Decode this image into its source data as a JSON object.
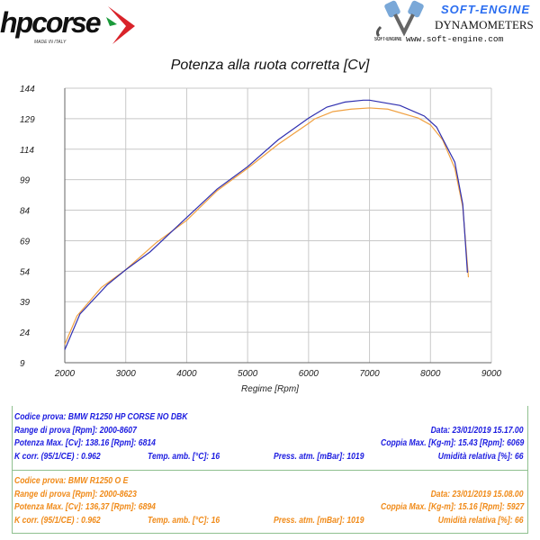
{
  "logos": {
    "left": {
      "text": "hpcorse",
      "sub": "MADE IN ITALY"
    },
    "right": {
      "title": "SOFT-ENGINE",
      "line2": "DYNAMOMETERS",
      "web": "www.soft-engine.com",
      "small": "SOFT-ENGINE"
    }
  },
  "chart_data": {
    "type": "line",
    "title": "Potenza alla ruota corretta [Cv]",
    "xlabel": "Regime [Rpm]",
    "ylabel": "",
    "xlim": [
      2000,
      9000
    ],
    "ylim": [
      9,
      144
    ],
    "xticks": [
      2000,
      3000,
      4000,
      5000,
      6000,
      7000,
      8000,
      9000
    ],
    "yticks": [
      9,
      24,
      39,
      54,
      69,
      84,
      99,
      114,
      129,
      144
    ],
    "grid": true,
    "series": [
      {
        "color": "#3030b0",
        "x": [
          2000,
          2250,
          2700,
          3000,
          3400,
          4000,
          4500,
          5000,
          5500,
          6000,
          6300,
          6600,
          6900,
          7000,
          7500,
          7900,
          8100,
          8400,
          8530,
          8607
        ],
        "y": [
          15.4,
          33,
          47.4,
          54.7,
          63.5,
          80.4,
          94.4,
          105.4,
          118.6,
          129.3,
          134.7,
          137.2,
          138.1,
          138.1,
          135.5,
          130.3,
          124.9,
          107.6,
          87,
          53.3
        ]
      },
      {
        "color": "#f0a040",
        "x": [
          2000,
          2200,
          2600,
          3000,
          3500,
          4000,
          4500,
          5000,
          5500,
          6000,
          6100,
          6400,
          6700,
          7000,
          7300,
          7800,
          8000,
          8200,
          8400,
          8530,
          8623
        ],
        "y": [
          18,
          32,
          46,
          54.7,
          68,
          79,
          93.6,
          104.6,
          116.4,
          126.7,
          128.9,
          132.5,
          133.7,
          134.3,
          133.7,
          129.3,
          126,
          118.6,
          104.6,
          85.6,
          51
        ]
      }
    ]
  },
  "tests": [
    {
      "color": "#1b1be0",
      "codice": "Codice prova: BMW R1250 HP CORSE NO DBK",
      "range": "Range di prova [Rpm]: 2000-8607",
      "data": "Data: 23/01/2019   15.17.00",
      "potenza": "Potenza Max. [Cv]: 138.16   [Rpm]: 6814",
      "coppia": "Coppia Max. [Kg-m]: 15.43   [Rpm]: 6069",
      "kcorr": "K corr. (95/1/CE) : 0.962",
      "temp": "Temp. amb. [°C]: 16",
      "press": "Press. atm. [mBar]: 1019",
      "umid": "Umidità relativa [%]: 66"
    },
    {
      "color": "#f08a18",
      "codice": "Codice prova: BMW R1250 O E",
      "range": "Range di prova [Rpm]: 2000-8623",
      "data": "Data: 23/01/2019   15.08.00",
      "potenza": "Potenza Max. [Cv]: 136,37   [Rpm]: 6894",
      "coppia": "Coppia Max. [Kg-m]: 15.16   [Rpm]: 5927",
      "kcorr": "K corr. (95/1/CE) : 0.962",
      "temp": "Temp. amb. [°C]: 16",
      "press": "Press. atm. [mBar]: 1019",
      "umid": "Umidità relativa [%]: 66"
    }
  ]
}
